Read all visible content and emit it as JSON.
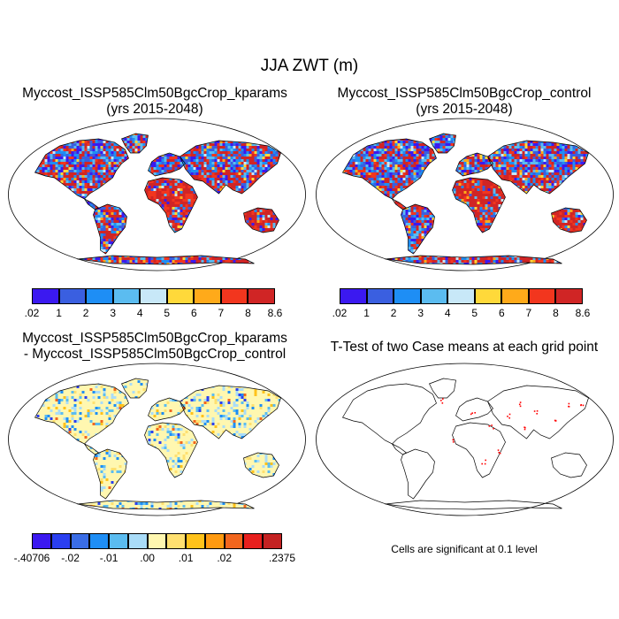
{
  "main_title": "JJA ZWT (m)",
  "panels": {
    "top_left": {
      "line1": "Myccost_ISSP585Clm50BgcCrop_kparams",
      "line2": "(yrs 2015-2048)"
    },
    "top_right": {
      "line1": "Myccost_ISSP585Clm50BgcCrop_control",
      "line2": "(yrs 2015-2048)"
    },
    "bottom_left": {
      "line1": "Myccost_ISSP585Clm50BgcCrop_kparams",
      "line2": "- Myccost_ISSP585Clm50BgcCrop_control"
    },
    "bottom_right": {
      "line1": "T-Test of two Case means at each grid point"
    }
  },
  "colorbar_abs": {
    "colors": [
      "#3b19f0",
      "#3a5fe0",
      "#1e8ef5",
      "#5bbcf0",
      "#c8e8f8",
      "#ffd93a",
      "#ffaa1a",
      "#f2361e",
      "#d02525"
    ],
    "labels": [
      ".02",
      "1",
      "2",
      "3",
      "4",
      "5",
      "6",
      "7",
      "8",
      "8.6"
    ]
  },
  "colorbar_diff": {
    "colors": [
      "#3b19f0",
      "#2a3ff0",
      "#3a6de6",
      "#1e8ef5",
      "#5bbcf0",
      "#a9dcf8",
      "#fff7b0",
      "#ffe070",
      "#ffc21a",
      "#ff9a10",
      "#f2661e",
      "#e8201e",
      "#c42222"
    ],
    "labels": [
      {
        "text": "-.40706",
        "pos": 0
      },
      {
        "text": "-.02",
        "pos": 2
      },
      {
        "text": "-.01",
        "pos": 4
      },
      {
        "text": ".00",
        "pos": 6
      },
      {
        "text": ".01",
        "pos": 8
      },
      {
        "text": ".02",
        "pos": 10
      },
      {
        "text": ".2375",
        "pos": 13
      }
    ]
  },
  "note": "Cells are significant at 0.1 level"
}
